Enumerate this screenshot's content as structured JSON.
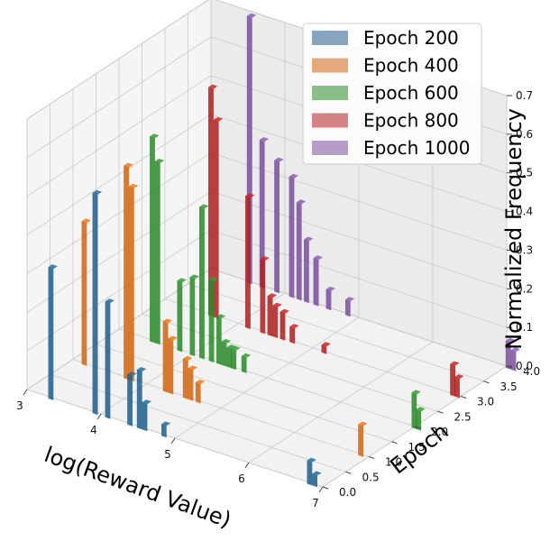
{
  "chart_data": {
    "type": "bar3d",
    "xlabel": "log(Reward Value)",
    "ylabel": "Epoch",
    "zlabel": "Normalized Frequency",
    "xlim": [
      3,
      7
    ],
    "ylim": [
      0,
      4
    ],
    "zlim": [
      0,
      0.7
    ],
    "x_ticks": [
      "3",
      "4",
      "5",
      "6",
      "7"
    ],
    "y_ticks": [
      "0.0",
      "0.5",
      "1.0",
      "1.5",
      "2.0",
      "2.5",
      "3.0",
      "3.5",
      "4.0"
    ],
    "z_ticks": [
      "0.0",
      "0.1",
      "0.2",
      "0.3",
      "0.4",
      "0.5",
      "0.6",
      "0.7"
    ],
    "legend": [
      "Epoch 200",
      "Epoch 400",
      "Epoch 600",
      "Epoch 800",
      "Epoch 1000"
    ],
    "colors": [
      "#1f5f8b",
      "#d4650f",
      "#2a8a2a",
      "#b01f1f",
      "#7a4f9e"
    ],
    "series": [
      {
        "name": "Epoch 200",
        "y": 0,
        "bins": [
          [
            3.35,
            0.34
          ],
          [
            3.95,
            0.57
          ],
          [
            4.12,
            0.3
          ],
          [
            4.42,
            0.13
          ],
          [
            4.55,
            0.15
          ],
          [
            4.62,
            0.07
          ],
          [
            4.88,
            0.03
          ],
          [
            6.85,
            0.06
          ],
          [
            6.92,
            0.03
          ]
        ]
      },
      {
        "name": "Epoch 400",
        "y": 1,
        "bins": [
          [
            3.18,
            0.37
          ],
          [
            3.75,
            0.55
          ],
          [
            3.82,
            0.5
          ],
          [
            4.28,
            0.18
          ],
          [
            4.35,
            0.14
          ],
          [
            4.55,
            0.1
          ],
          [
            4.62,
            0.08
          ],
          [
            4.72,
            0.05
          ],
          [
            6.92,
            0.08
          ]
        ]
      },
      {
        "name": "Epoch 600",
        "y": 2,
        "bins": [
          [
            3.48,
            0.53
          ],
          [
            3.55,
            0.47
          ],
          [
            3.85,
            0.18
          ],
          [
            4.02,
            0.2
          ],
          [
            4.15,
            0.39
          ],
          [
            4.28,
            0.21
          ],
          [
            4.38,
            0.12
          ],
          [
            4.45,
            0.06
          ],
          [
            4.52,
            0.05
          ],
          [
            4.58,
            0.05
          ],
          [
            4.72,
            0.04
          ],
          [
            7.02,
            0.09
          ],
          [
            7.08,
            0.05
          ]
        ]
      },
      {
        "name": "Epoch 800",
        "y": 3,
        "bins": [
          [
            3.65,
            0.59
          ],
          [
            3.72,
            0.51
          ],
          [
            4.15,
            0.34
          ],
          [
            4.35,
            0.19
          ],
          [
            4.45,
            0.1
          ],
          [
            4.52,
            0.08
          ],
          [
            4.62,
            0.07
          ],
          [
            4.75,
            0.04
          ],
          [
            5.18,
            0.02
          ],
          [
            6.92,
            0.08
          ],
          [
            6.98,
            0.05
          ]
        ]
      },
      {
        "name": "Epoch 1000",
        "y": 4,
        "bins": [
          [
            3.55,
            0.69
          ],
          [
            3.72,
            0.38
          ],
          [
            3.92,
            0.34
          ],
          [
            4.12,
            0.31
          ],
          [
            4.22,
            0.25
          ],
          [
            4.32,
            0.16
          ],
          [
            4.45,
            0.12
          ],
          [
            4.62,
            0.05
          ],
          [
            4.88,
            0.04
          ],
          [
            7.05,
            0.07
          ],
          [
            7.12,
            0.05
          ]
        ]
      }
    ]
  }
}
